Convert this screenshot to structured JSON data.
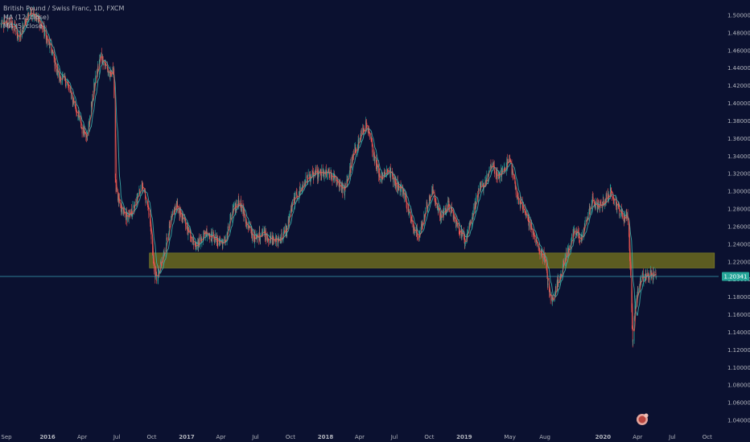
{
  "legend": {
    "symbol": "British Pound / Swiss Franc, 1D, FXCM",
    "ma_slow": "MA (12, close)",
    "ma_fast": "MA (5, close)"
  },
  "current_price": "1.20341",
  "colors": {
    "background": "#0b1130",
    "up": "#26a69a",
    "down": "#ef5350",
    "ma_fast": "#e0584f",
    "ma_slow": "#3fb5b0",
    "zone_fill": "#6b6a1e",
    "price_line": "#3aa2b5",
    "price_tag": "#26a69a",
    "axis_text": "#b2b5be"
  },
  "icons": {
    "watermark": "tradingview-logo-icon"
  },
  "chart_data": {
    "type": "candlestick",
    "title": "",
    "ylim": [
      1.03,
      1.51
    ],
    "y_ticks": [
      "1.04000",
      "1.06000",
      "1.08000",
      "1.10000",
      "1.12000",
      "1.14000",
      "1.16000",
      "1.18000",
      "1.20000",
      "1.22000",
      "1.24000",
      "1.26000",
      "1.28000",
      "1.30000",
      "1.32000",
      "1.34000",
      "1.36000",
      "1.38000",
      "1.40000",
      "1.42000",
      "1.44000",
      "1.46000",
      "1.48000",
      "1.50000"
    ],
    "x_ticks": [
      "Sep",
      "2016",
      "Apr",
      "Jul",
      "Oct",
      "2017",
      "Apr",
      "Jul",
      "Oct",
      "2018",
      "Apr",
      "Jul",
      "Oct",
      "2019",
      "May",
      "Aug",
      "2020",
      "Apr",
      "Jul",
      "Oct"
    ],
    "x_range": [
      "2015-08-29",
      "2020-10-31"
    ],
    "x_tick_dates": [
      "2015-09-01",
      "2016-01-01",
      "2016-04-01",
      "2016-07-01",
      "2016-10-01",
      "2017-01-01",
      "2017-04-01",
      "2017-07-01",
      "2017-10-01",
      "2018-01-01",
      "2018-04-01",
      "2018-07-01",
      "2018-10-01",
      "2019-01-01",
      "2019-05-01",
      "2019-08-01",
      "2020-01-01",
      "2020-04-01",
      "2020-07-01",
      "2020-10-01"
    ],
    "last_date": "2020-05-20",
    "price_path": [
      [
        "2015-08-29",
        1.488
      ],
      [
        "2015-09-25",
        1.492
      ],
      [
        "2015-10-20",
        1.475
      ],
      [
        "2015-11-10",
        1.5
      ],
      [
        "2015-11-25",
        1.505
      ],
      [
        "2015-12-20",
        1.485
      ],
      [
        "2016-01-15",
        1.455
      ],
      [
        "2016-01-31",
        1.43
      ],
      [
        "2016-02-20",
        1.425
      ],
      [
        "2016-03-15",
        1.395
      ],
      [
        "2016-04-01",
        1.37
      ],
      [
        "2016-04-15",
        1.365
      ],
      [
        "2016-05-01",
        1.415
      ],
      [
        "2016-05-20",
        1.455
      ],
      [
        "2016-06-15",
        1.43
      ],
      [
        "2016-06-23",
        1.44
      ],
      [
        "2016-06-27",
        1.31
      ],
      [
        "2016-07-10",
        1.28
      ],
      [
        "2016-08-01",
        1.27
      ],
      [
        "2016-08-20",
        1.285
      ],
      [
        "2016-09-05",
        1.31
      ],
      [
        "2016-09-25",
        1.275
      ],
      [
        "2016-10-07",
        1.21
      ],
      [
        "2016-10-15",
        1.2
      ],
      [
        "2016-10-31",
        1.225
      ],
      [
        "2016-11-20",
        1.265
      ],
      [
        "2016-12-05",
        1.285
      ],
      [
        "2016-12-31",
        1.26
      ],
      [
        "2017-01-16",
        1.245
      ],
      [
        "2017-01-30",
        1.24
      ],
      [
        "2017-02-20",
        1.255
      ],
      [
        "2017-03-20",
        1.245
      ],
      [
        "2017-04-10",
        1.24
      ],
      [
        "2017-05-01",
        1.275
      ],
      [
        "2017-05-20",
        1.29
      ],
      [
        "2017-06-10",
        1.26
      ],
      [
        "2017-07-01",
        1.245
      ],
      [
        "2017-07-20",
        1.255
      ],
      [
        "2017-08-10",
        1.245
      ],
      [
        "2017-08-31",
        1.245
      ],
      [
        "2017-09-20",
        1.255
      ],
      [
        "2017-10-05",
        1.285
      ],
      [
        "2017-10-25",
        1.3
      ],
      [
        "2017-11-15",
        1.315
      ],
      [
        "2017-12-10",
        1.32
      ],
      [
        "2018-01-10",
        1.32
      ],
      [
        "2018-02-05",
        1.31
      ],
      [
        "2018-02-20",
        1.3
      ],
      [
        "2018-03-15",
        1.34
      ],
      [
        "2018-04-01",
        1.36
      ],
      [
        "2018-04-17",
        1.375
      ],
      [
        "2018-05-01",
        1.355
      ],
      [
        "2018-05-25",
        1.315
      ],
      [
        "2018-06-15",
        1.325
      ],
      [
        "2018-07-05",
        1.31
      ],
      [
        "2018-07-25",
        1.3
      ],
      [
        "2018-08-15",
        1.265
      ],
      [
        "2018-09-05",
        1.25
      ],
      [
        "2018-09-25",
        1.285
      ],
      [
        "2018-10-10",
        1.3
      ],
      [
        "2018-10-30",
        1.27
      ],
      [
        "2018-11-20",
        1.285
      ],
      [
        "2018-12-15",
        1.26
      ],
      [
        "2019-01-03",
        1.245
      ],
      [
        "2019-01-20",
        1.27
      ],
      [
        "2019-02-05",
        1.295
      ],
      [
        "2019-02-25",
        1.31
      ],
      [
        "2019-03-15",
        1.33
      ],
      [
        "2019-04-01",
        1.315
      ],
      [
        "2019-04-20",
        1.33
      ],
      [
        "2019-05-01",
        1.335
      ],
      [
        "2019-05-20",
        1.295
      ],
      [
        "2019-06-05",
        1.28
      ],
      [
        "2019-06-25",
        1.26
      ],
      [
        "2019-07-15",
        1.235
      ],
      [
        "2019-07-31",
        1.225
      ],
      [
        "2019-08-12",
        1.185
      ],
      [
        "2019-08-20",
        1.175
      ],
      [
        "2019-09-10",
        1.205
      ],
      [
        "2019-09-25",
        1.225
      ],
      [
        "2019-10-10",
        1.245
      ],
      [
        "2019-10-20",
        1.255
      ],
      [
        "2019-11-05",
        1.245
      ],
      [
        "2019-11-20",
        1.27
      ],
      [
        "2019-12-05",
        1.29
      ],
      [
        "2019-12-20",
        1.28
      ],
      [
        "2020-01-05",
        1.29
      ],
      [
        "2020-01-25",
        1.3
      ],
      [
        "2020-02-10",
        1.28
      ],
      [
        "2020-02-25",
        1.27
      ],
      [
        "2020-03-05",
        1.275
      ],
      [
        "2020-03-10",
        1.24
      ],
      [
        "2020-03-15",
        1.18
      ],
      [
        "2020-03-19",
        1.125
      ],
      [
        "2020-03-25",
        1.17
      ],
      [
        "2020-04-10",
        1.2
      ],
      [
        "2020-05-01",
        1.205
      ],
      [
        "2020-05-20",
        1.20341
      ]
    ],
    "support_zone": {
      "from": 1.213,
      "to": 1.23,
      "x_start": "2016-09-25",
      "x_end": "2020-10-20"
    },
    "moving_averages": [
      {
        "name": "MA (12, close)",
        "length": 12
      },
      {
        "name": "MA (5, close)",
        "length": 5
      }
    ],
    "last_price": 1.20341
  }
}
